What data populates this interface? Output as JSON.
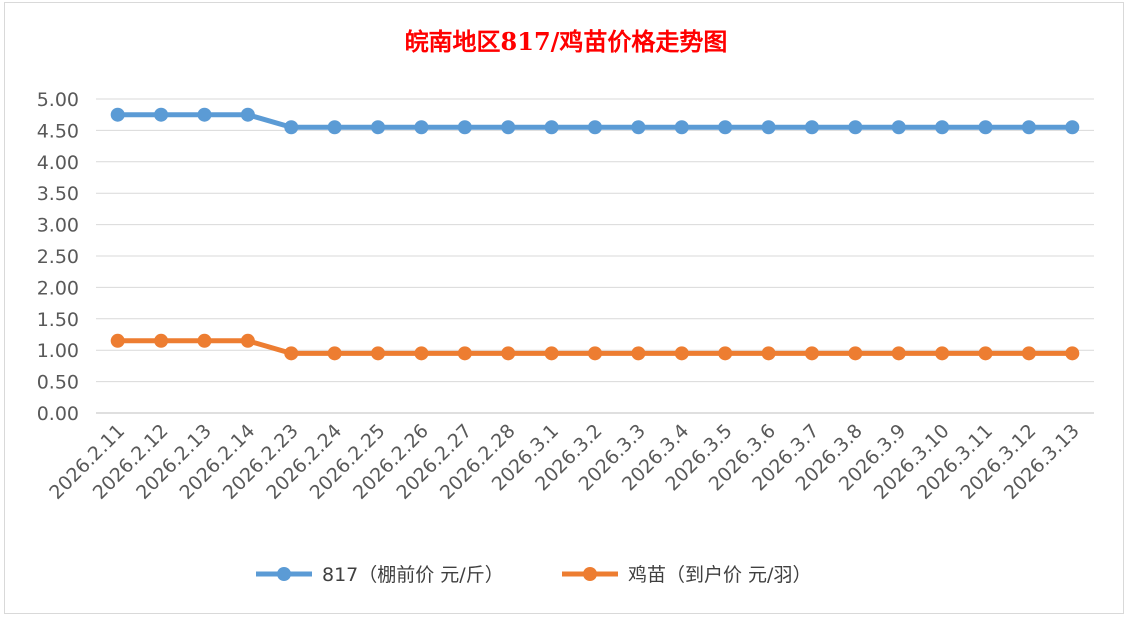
{
  "chart_data": {
    "type": "line",
    "title": "皖南地区817/鸡苗价格走势图",
    "xlabel": "",
    "ylabel": "",
    "categories": [
      "2026.2.11",
      "2026.2.12",
      "2026.2.13",
      "2026.2.14",
      "2026.2.23",
      "2026.2.24",
      "2026.2.25",
      "2026.2.26",
      "2026.2.27",
      "2026.2.28",
      "2026.3.1",
      "2026.3.2",
      "2026.3.3",
      "2026.3.4",
      "2026.3.5",
      "2026.3.6",
      "2026.3.7",
      "2026.3.8",
      "2026.3.9",
      "2026.3.10",
      "2026.3.11",
      "2026.3.12",
      "2026.3.13"
    ],
    "ylim": [
      0,
      5
    ],
    "yticks": [
      "0.00",
      "0.50",
      "1.00",
      "1.50",
      "2.00",
      "2.50",
      "3.00",
      "3.50",
      "4.00",
      "4.50",
      "5.00"
    ],
    "grid": true,
    "legend_position": "bottom",
    "series": [
      {
        "name": "817（棚前价 元/斤）",
        "color": "#5b9bd5",
        "values": [
          4.75,
          4.75,
          4.75,
          4.75,
          4.55,
          4.55,
          4.55,
          4.55,
          4.55,
          4.55,
          4.55,
          4.55,
          4.55,
          4.55,
          4.55,
          4.55,
          4.55,
          4.55,
          4.55,
          4.55,
          4.55,
          4.55,
          4.55
        ]
      },
      {
        "name": "鸡苗（到户价 元/羽）",
        "color": "#ed7d31",
        "values": [
          1.15,
          1.15,
          1.15,
          1.15,
          0.95,
          0.95,
          0.95,
          0.95,
          0.95,
          0.95,
          0.95,
          0.95,
          0.95,
          0.95,
          0.95,
          0.95,
          0.95,
          0.95,
          0.95,
          0.95,
          0.95,
          0.95,
          0.95
        ]
      }
    ]
  }
}
